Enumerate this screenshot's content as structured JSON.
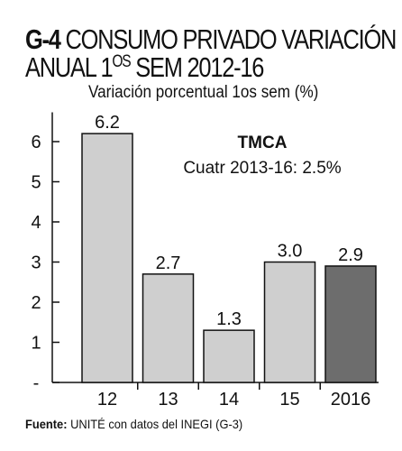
{
  "title": {
    "code": "G-4",
    "line1_rest": "CONSUMO PRIVADO VARIACIÓN",
    "line2_pre": "ANUAL 1",
    "line2_sup": "OS",
    "line2_post": " SEM 2012-16"
  },
  "subtitle": "Variación porcentual 1os sem (%)",
  "tmca": {
    "heading": "TMCA",
    "text": "Cuatr 2013-16:  2.5%"
  },
  "source": {
    "label": "Fuente:",
    "text": " UNITÉ con datos del INEGI (G-3)"
  },
  "chart_data": {
    "type": "bar",
    "categories": [
      "12",
      "13",
      "14",
      "15",
      "2016"
    ],
    "values": [
      6.2,
      2.7,
      1.3,
      3.0,
      2.9
    ],
    "data_labels": [
      "6.2",
      "2.7",
      "1.3",
      "3.0",
      "2.9"
    ],
    "y_ticks": [
      "-",
      "1",
      "2",
      "3",
      "4",
      "5",
      "6"
    ],
    "ylim": [
      0,
      7
    ],
    "grid": false,
    "colors": [
      "#cfcfcf",
      "#cfcfcf",
      "#cfcfcf",
      "#cfcfcf",
      "#6d6d6d"
    ],
    "stroke_color": "#111111"
  }
}
